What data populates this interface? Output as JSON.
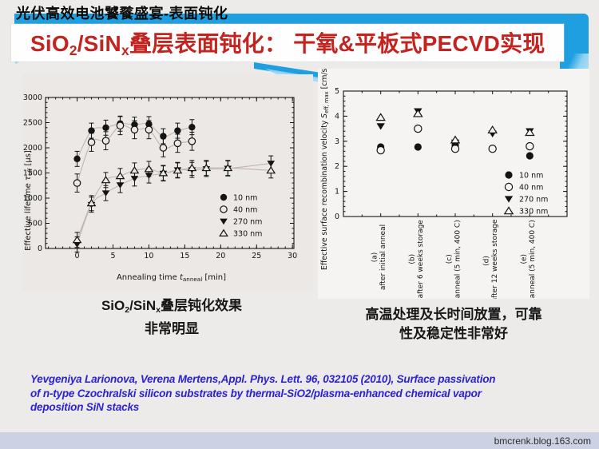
{
  "slide": {
    "header_tag": "光伏高效电池饕餮盛宴-表面钝化",
    "title_parts": [
      {
        "t": "SiO"
      },
      {
        "t": "2",
        "s": "sub"
      },
      {
        "t": "/SiN"
      },
      {
        "t": "x",
        "s": "sub"
      },
      {
        "t": "叠层表面钝化： 干氧&平板式PECVD实现"
      }
    ],
    "captions": {
      "left_line1_parts": [
        {
          "t": "SiO"
        },
        {
          "t": "2",
          "s": "sub"
        },
        {
          "t": "/SiN"
        },
        {
          "t": "x",
          "s": "sub"
        },
        {
          "t": "叠层钝化效果"
        }
      ],
      "left_line2": "非常明显",
      "right_line1": "高温处理及长时间放置，可靠",
      "right_line2": "性及稳定性非常好"
    },
    "citation_lines": [
      "Yevgeniya Larionova, Verena Mertens,Appl. Phys. Lett. 96, 032105 (2010), Surface passivation",
      "of n-type Czochralski silicon substrates by thermal-SiO2/plasma-enhanced chemical vapor",
      "deposition SiN stacks"
    ],
    "footer": "bmcrenk.blog.163.com",
    "colors": {
      "accent_blue": "#1f9fe0",
      "accent_blue_light": "#8ed2f0",
      "title_red": "#c4241f",
      "citation_blue": "#2b22d3",
      "footer_bar": "#ccd1e3"
    }
  },
  "chart_data": [
    {
      "type": "scatter",
      "title": "",
      "xlabel_parts": [
        {
          "t": "Annealing time "
        },
        {
          "t": "t",
          "s": "i"
        },
        {
          "t": "anneal",
          "s": "sub"
        },
        {
          "t": " [min]"
        }
      ],
      "ylabel_parts": [
        {
          "t": "Effective lifetime "
        },
        {
          "t": "τ",
          "s": "i"
        },
        {
          "t": "eff",
          "s": "sub"
        },
        {
          "t": " [μs]"
        }
      ],
      "xlim": [
        -4.4,
        30.2
      ],
      "ylim": [
        0,
        3000
      ],
      "xticks": [
        0,
        5,
        10,
        15,
        20,
        25,
        30
      ],
      "yticks": [
        0,
        500,
        1000,
        1500,
        2000,
        2500,
        3000
      ],
      "x_minor_step": 1,
      "y_minor_step": 100,
      "grid": false,
      "legend_position": "inside-right",
      "series": [
        {
          "name": "10 nm",
          "marker": "circle-filled",
          "err": 150,
          "x": [
            0,
            2,
            4,
            6,
            8,
            10,
            12,
            14,
            16
          ],
          "y": [
            1780,
            2340,
            2400,
            2480,
            2460,
            2470,
            2230,
            2340,
            2410
          ]
        },
        {
          "name": "40 nm",
          "marker": "circle-open",
          "err": 180,
          "x": [
            0,
            2,
            4,
            6,
            8,
            10,
            12,
            14,
            16
          ],
          "y": [
            1300,
            2110,
            2140,
            2440,
            2360,
            2360,
            2000,
            2090,
            2130
          ]
        },
        {
          "name": "270 nm",
          "marker": "triangle-down-filled",
          "err": 150,
          "x": [
            0,
            2,
            4,
            6,
            8,
            10,
            12,
            14,
            16,
            18,
            21,
            27
          ],
          "y": [
            80,
            870,
            1100,
            1260,
            1390,
            1450,
            1490,
            1560,
            1560,
            1580,
            1590,
            1690
          ]
        },
        {
          "name": "330 nm",
          "marker": "triangle-up-open",
          "err": 150,
          "x": [
            0,
            2,
            4,
            6,
            8,
            10,
            12,
            14,
            16,
            18,
            21,
            27
          ],
          "y": [
            170,
            900,
            1360,
            1440,
            1550,
            1580,
            1500,
            1550,
            1600,
            1600,
            1600,
            1550
          ]
        }
      ]
    },
    {
      "type": "scatter",
      "title": "",
      "ylabel_parts": [
        {
          "t": "Effective surface recombination velocity "
        },
        {
          "t": "S",
          "s": "i"
        },
        {
          "t": "eff, max",
          "s": "sub"
        },
        {
          "t": " [cm/s]"
        }
      ],
      "ylim": [
        0,
        5
      ],
      "yticks": [
        0,
        1,
        2,
        3,
        4,
        5
      ],
      "y_minor_step": 0.2,
      "grid": false,
      "legend_position": "inside-right",
      "categories": [
        {
          "tag": "(a)",
          "label": "after initial anneal"
        },
        {
          "tag": "(b)",
          "label": "after 6 weeks storage"
        },
        {
          "tag": "(c)",
          "label": "anneal (5 min, 400 C)"
        },
        {
          "tag": "(d)",
          "label": "after 12 weeks storage"
        },
        {
          "tag": "(e)",
          "label": "anneal (5 min, 400 C)"
        }
      ],
      "series": [
        {
          "name": "10 nm",
          "marker": "circle-filled",
          "values": [
            2.77,
            2.77,
            2.85,
            2.7,
            2.42
          ]
        },
        {
          "name": "40 nm",
          "marker": "circle-open",
          "values": [
            2.64,
            3.5,
            2.7,
            2.7,
            2.8
          ]
        },
        {
          "name": "270 nm",
          "marker": "triangle-down-filled",
          "values": [
            3.6,
            4.2,
            2.95,
            3.3,
            3.4
          ]
        },
        {
          "name": "330 nm",
          "marker": "triangle-up-open",
          "values": [
            3.95,
            4.1,
            3.05,
            3.45,
            3.35
          ]
        }
      ]
    }
  ]
}
